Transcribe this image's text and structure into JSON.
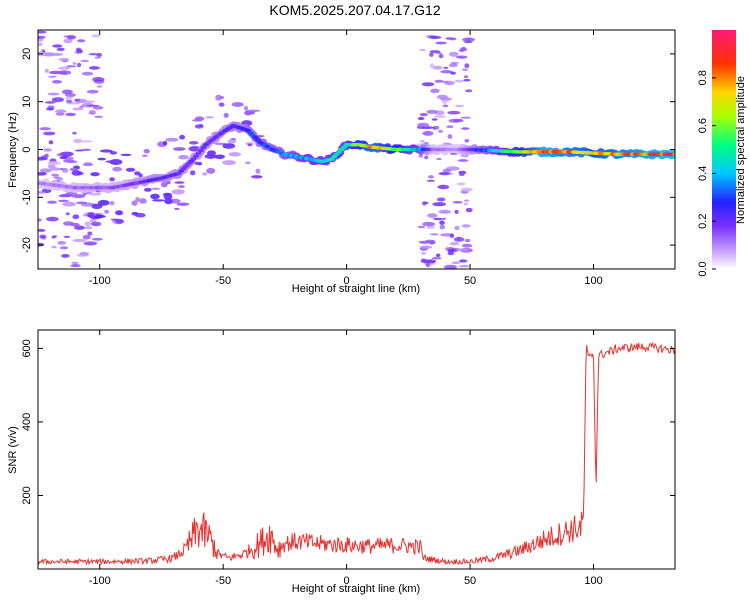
{
  "title": "KOM5.2025.207.04.17.G12",
  "chart_data": [
    {
      "type": "heatmap",
      "xlabel": "Height of straight line (km)",
      "ylabel": "Frequency (Hz)",
      "xlim": [
        -125,
        133
      ],
      "ylim": [
        -25,
        25
      ],
      "xticks": [
        -100,
        -50,
        0,
        50,
        100
      ],
      "yticks": [
        -20,
        -10,
        0,
        10,
        20
      ],
      "colorbar": {
        "label": "Normalized spectral amplitude",
        "range": [
          0,
          1
        ],
        "ticks": [
          0.0,
          0.2,
          0.4,
          0.6,
          0.8
        ]
      },
      "ridge": [
        {
          "x": -125,
          "y": -7
        },
        {
          "x": -110,
          "y": -8
        },
        {
          "x": -95,
          "y": -8
        },
        {
          "x": -85,
          "y": -7
        },
        {
          "x": -75,
          "y": -6
        },
        {
          "x": -68,
          "y": -5
        },
        {
          "x": -62,
          "y": -2
        },
        {
          "x": -57,
          "y": 1
        },
        {
          "x": -52,
          "y": 3
        },
        {
          "x": -46,
          "y": 5
        },
        {
          "x": -40,
          "y": 4
        },
        {
          "x": -35,
          "y": 1.5
        },
        {
          "x": -30,
          "y": 0
        },
        {
          "x": -25,
          "y": -1
        },
        {
          "x": -20,
          "y": -1.5
        },
        {
          "x": -15,
          "y": -2
        },
        {
          "x": -10,
          "y": -2.5
        },
        {
          "x": -6,
          "y": -2
        },
        {
          "x": -3,
          "y": -0.5
        },
        {
          "x": 0,
          "y": 1
        },
        {
          "x": 5,
          "y": 1
        },
        {
          "x": 10,
          "y": 0.5
        },
        {
          "x": 20,
          "y": 0
        },
        {
          "x": 30,
          "y": 0
        },
        {
          "x": 50,
          "y": 0
        },
        {
          "x": 70,
          "y": -0.5
        },
        {
          "x": 90,
          "y": -0.5
        },
        {
          "x": 110,
          "y": -1
        },
        {
          "x": 133,
          "y": -1
        }
      ],
      "ridge_amplitude": [
        {
          "x": -125,
          "a": 0.1
        },
        {
          "x": -90,
          "a": 0.15
        },
        {
          "x": -80,
          "a": 0.22
        },
        {
          "x": -65,
          "a": 0.2
        },
        {
          "x": -50,
          "a": 0.2
        },
        {
          "x": -40,
          "a": 0.28
        },
        {
          "x": -30,
          "a": 0.3
        },
        {
          "x": -15,
          "a": 0.4
        },
        {
          "x": 0,
          "a": 0.45
        },
        {
          "x": 10,
          "a": 0.75
        },
        {
          "x": 20,
          "a": 0.6
        },
        {
          "x": 30,
          "a": 0.35
        },
        {
          "x": 35,
          "a": 0.12
        },
        {
          "x": 45,
          "a": 0.1
        },
        {
          "x": 55,
          "a": 0.3
        },
        {
          "x": 70,
          "a": 0.6
        },
        {
          "x": 80,
          "a": 0.85
        },
        {
          "x": 100,
          "a": 0.7
        },
        {
          "x": 115,
          "a": 0.8
        },
        {
          "x": 133,
          "a": 0.88
        }
      ],
      "noise_columns": [
        {
          "x0": -125,
          "x1": -100
        },
        {
          "x0": 30,
          "x1": 50
        }
      ]
    },
    {
      "type": "line",
      "xlabel": "Height of straight line (km)",
      "ylabel": "SNR (v/v)",
      "xlim": [
        -125,
        133
      ],
      "ylim": [
        0,
        650
      ],
      "xticks": [
        -100,
        -50,
        0,
        50,
        100
      ],
      "yticks": [
        200,
        400,
        600
      ],
      "color": "#e8322f",
      "series": [
        {
          "points": [
            {
              "x": -125,
              "y": 20
            },
            {
              "x": -100,
              "y": 20
            },
            {
              "x": -80,
              "y": 22
            },
            {
              "x": -70,
              "y": 30
            },
            {
              "x": -65,
              "y": 55
            },
            {
              "x": -60,
              "y": 110
            },
            {
              "x": -56,
              "y": 90
            },
            {
              "x": -52,
              "y": 40
            },
            {
              "x": -48,
              "y": 30
            },
            {
              "x": -42,
              "y": 40
            },
            {
              "x": -36,
              "y": 65
            },
            {
              "x": -31,
              "y": 95
            },
            {
              "x": -28,
              "y": 55
            },
            {
              "x": -25,
              "y": 70
            },
            {
              "x": -20,
              "y": 75
            },
            {
              "x": -10,
              "y": 68
            },
            {
              "x": 0,
              "y": 65
            },
            {
              "x": 10,
              "y": 62
            },
            {
              "x": 20,
              "y": 65
            },
            {
              "x": 30,
              "y": 60
            },
            {
              "x": 31,
              "y": 30
            },
            {
              "x": 40,
              "y": 20
            },
            {
              "x": 50,
              "y": 20
            },
            {
              "x": 60,
              "y": 30
            },
            {
              "x": 70,
              "y": 50
            },
            {
              "x": 80,
              "y": 80
            },
            {
              "x": 90,
              "y": 105
            },
            {
              "x": 95,
              "y": 115
            },
            {
              "x": 96,
              "y": 130
            },
            {
              "x": 97,
              "y": 610
            },
            {
              "x": 98,
              "y": 570
            },
            {
              "x": 100,
              "y": 590
            },
            {
              "x": 101,
              "y": 210
            },
            {
              "x": 102,
              "y": 580
            },
            {
              "x": 110,
              "y": 600
            },
            {
              "x": 120,
              "y": 605
            },
            {
              "x": 133,
              "y": 595
            }
          ]
        }
      ]
    }
  ]
}
